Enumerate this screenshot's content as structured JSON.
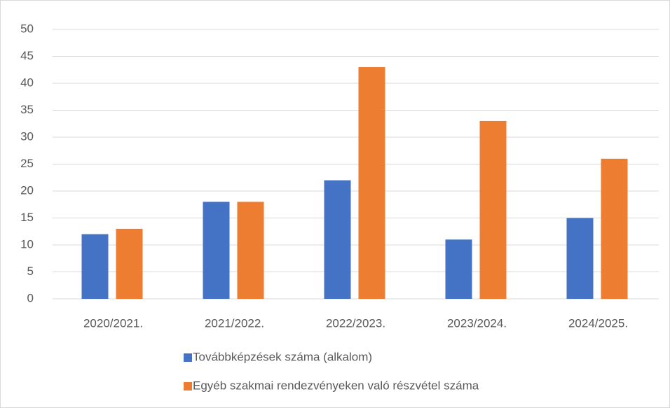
{
  "chart_data": {
    "type": "bar",
    "categories": [
      "2020/2021.",
      "2021/2022.",
      "2022/2023.",
      "2023/2024.",
      "2024/2025."
    ],
    "series": [
      {
        "name": "Továbbképzések száma (alkalom)",
        "color": "#4472c4",
        "values": [
          12,
          18,
          22,
          11,
          15
        ]
      },
      {
        "name": "Egyéb szakmai rendezvényeken való részvétel száma",
        "color": "#ed7d31",
        "values": [
          13,
          18,
          43,
          33,
          26
        ]
      }
    ],
    "ylim": [
      0,
      50
    ],
    "yticks": [
      0,
      5,
      10,
      15,
      20,
      25,
      30,
      35,
      40,
      45,
      50
    ],
    "grid": true,
    "legend": "bottom"
  }
}
